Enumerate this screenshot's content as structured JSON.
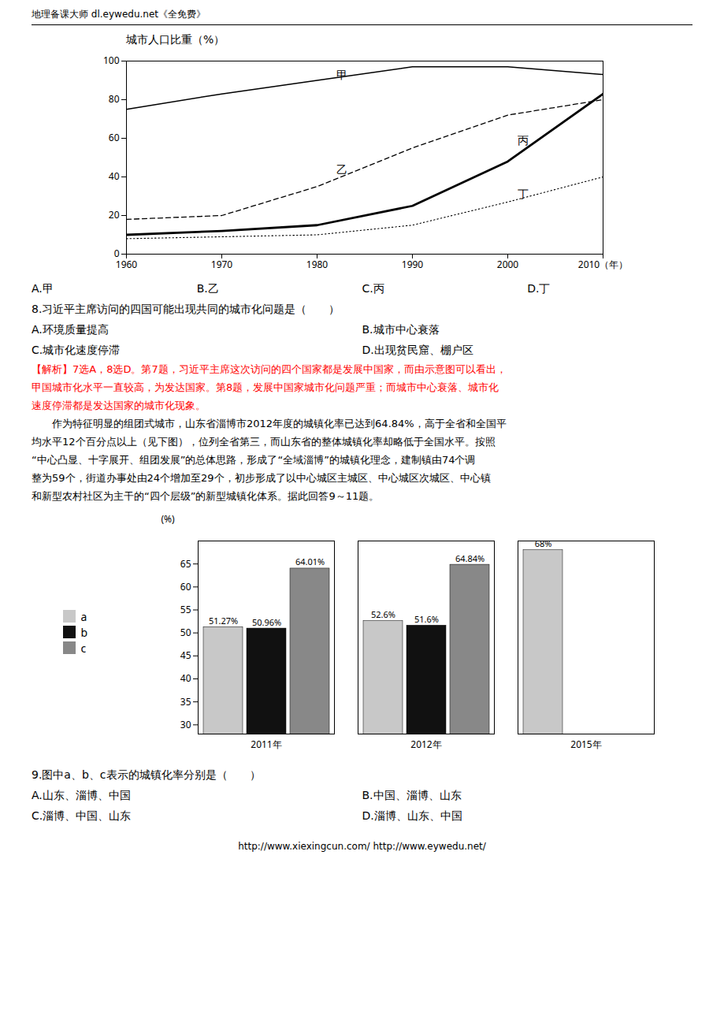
{
  "header": "地理备课大师 dl.eywedu.net《全免费》",
  "chart_data": [
    {
      "type": "line",
      "title": "城市人口比重（%）",
      "x": [
        1960,
        1970,
        1980,
        1990,
        2000,
        2010
      ],
      "xlim": [
        1960,
        2010
      ],
      "xticks": [
        1960,
        1970,
        1980,
        1990,
        2000,
        {
          "value": 2010,
          "label": "2010（年）"
        }
      ],
      "ylim": [
        0,
        100
      ],
      "yticks": [
        0,
        20,
        40,
        60,
        80,
        100
      ],
      "grid": false,
      "series": [
        {
          "name": "甲",
          "color": "black",
          "line_style": "solid",
          "values": [
            75,
            83,
            90,
            97,
            97,
            93
          ]
        },
        {
          "name": "乙",
          "color": "black",
          "line_style": "dashed",
          "values": [
            18,
            20,
            35,
            55,
            72,
            80
          ]
        },
        {
          "name": "丙",
          "color": "black",
          "line_style": "solid",
          "values": [
            10,
            12,
            15,
            25,
            48,
            83
          ]
        },
        {
          "name": "丁",
          "color": "black",
          "line_style": "dotted",
          "values": [
            8,
            9,
            10,
            15,
            27,
            40
          ]
        }
      ],
      "annotations": [
        {
          "text": "甲",
          "x": 1982,
          "y": 91
        },
        {
          "text": "乙",
          "x": 1982,
          "y": 42
        },
        {
          "text": "丙",
          "x": 2001,
          "y": 57
        },
        {
          "text": "丁",
          "x": 2001,
          "y": 29
        }
      ]
    },
    {
      "type": "bar",
      "ylabel": "(%)",
      "categories": [
        "2011年",
        "2012年",
        "2015年"
      ],
      "ylim": [
        28,
        70
      ],
      "yticks": [
        30,
        35,
        40,
        45,
        50,
        55,
        60,
        65
      ],
      "data_labels": true,
      "legend": "left",
      "series": [
        {
          "name": "a",
          "color": "#c8c8c8",
          "values": [
            51.27,
            52.6,
            68
          ],
          "value_labels": [
            "51.27%",
            "52.6%",
            "68%"
          ]
        },
        {
          "name": "b",
          "color": "#111111",
          "values": [
            50.96,
            51.6,
            null
          ],
          "value_labels": [
            "50.96%",
            "51.6%",
            null
          ]
        },
        {
          "name": "c",
          "color": "#888888",
          "values": [
            64.01,
            64.84,
            null
          ],
          "value_labels": [
            "64.01%",
            "64.84%",
            null
          ]
        }
      ]
    }
  ],
  "text_after_chart_1": [
    [
      "A.甲",
      "B.乙",
      "C.丙",
      "D.丁"
    ],
    [
      "8.习近平主席访问的四国可能出现共同的城市化问题是（　　）"
    ],
    [
      "A.环境质量提高",
      "B.城市中心衰落"
    ],
    [
      "C.城市化速度停滞",
      "D.出现贫民窟、棚户区"
    ]
  ],
  "explanation": {
    "color": "red",
    "lines": [
      "【解析】7选A，8选D。第7题，习近平主席这次访问的四个国家都是发展中国家，而由示意图可以看出，",
      "甲国城市化水平一直较高，为发达国家。第8题，发展中国家城市化问题严重；而城市中心衰落、城市化",
      "速度停滞都是发达国家的城市化现象。"
    ]
  },
  "paragraph": [
    "　　作为特征明显的组团式城市，山东省淄博市2012年度的城镇化率已达到64.84%，高于全省和全国平",
    "均水平12个百分点以上（见下图），位列全省第三，而山东省的整体城镇化率却略低于全国水平。按照",
    "“中心凸显、十字展开、组团发展”的总体思路，形成了“全域淄博”的城镇化理念，建制镇由74个调",
    "整为59个，街道办事处由24个增加至29个，初步形成了以中心城区主城区、中心城区次城区、中心镇",
    "和新型农村社区为主干的“四个层级”的新型城镇化体系。据此回答9～11题。"
  ],
  "text_after_chart_2": [
    [
      "9.图中a、b、c表示的城镇化率分别是（　　）"
    ],
    [
      "A.山东、淄博、中国",
      "B.中国、淄博、山东"
    ],
    [
      "C.淄博、中国、山东",
      "D.淄博、山东、中国"
    ]
  ],
  "footer": "http://www.xiexingcun.com/ http://www.eywedu.net/"
}
